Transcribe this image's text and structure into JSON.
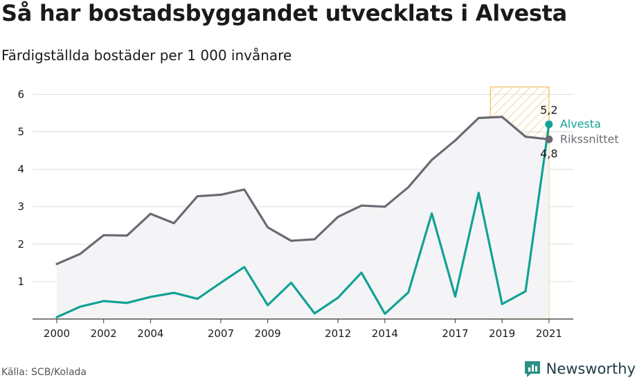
{
  "title": "Så har bostadsbyggandet utvecklats i Alvesta",
  "subtitle": "Färdigställda bostäder per 1 000 invånare",
  "source": "Källa: SCB/Kolada",
  "brand": "Newsworthy",
  "colors": {
    "alvesta": "#11a295",
    "riket": "#6b6a72",
    "highlight": "#f5c97a",
    "area": "#f4f4f6",
    "grid": "#dcdcdc"
  },
  "chart_data": {
    "type": "line",
    "x": [
      2000,
      2001,
      2002,
      2003,
      2004,
      2005,
      2006,
      2007,
      2008,
      2009,
      2010,
      2011,
      2012,
      2013,
      2014,
      2015,
      2016,
      2017,
      2018,
      2019,
      2020,
      2021
    ],
    "xticks": [
      2000,
      2002,
      2004,
      2007,
      2009,
      2012,
      2014,
      2017,
      2019,
      2021
    ],
    "yticks": [
      1,
      2,
      3,
      4,
      5,
      6
    ],
    "ylim": [
      0,
      6.2
    ],
    "grid": true,
    "highlight_range": [
      2018.5,
      2021
    ],
    "series": [
      {
        "name": "Alvesta",
        "values": [
          0.05,
          0.33,
          0.48,
          0.43,
          0.59,
          0.7,
          0.54,
          0.97,
          1.39,
          0.37,
          0.97,
          0.15,
          0.57,
          1.24,
          0.14,
          0.71,
          2.82,
          0.6,
          3.37,
          0.4,
          0.74,
          5.2
        ],
        "end_label": "5,2"
      },
      {
        "name": "Rikssnittet",
        "values": [
          1.47,
          1.74,
          2.24,
          2.23,
          2.81,
          2.56,
          3.28,
          3.32,
          3.46,
          2.45,
          2.09,
          2.13,
          2.73,
          3.03,
          3.0,
          3.52,
          4.25,
          4.77,
          5.37,
          5.4,
          4.87,
          4.8
        ],
        "end_label": "4,8"
      }
    ]
  }
}
